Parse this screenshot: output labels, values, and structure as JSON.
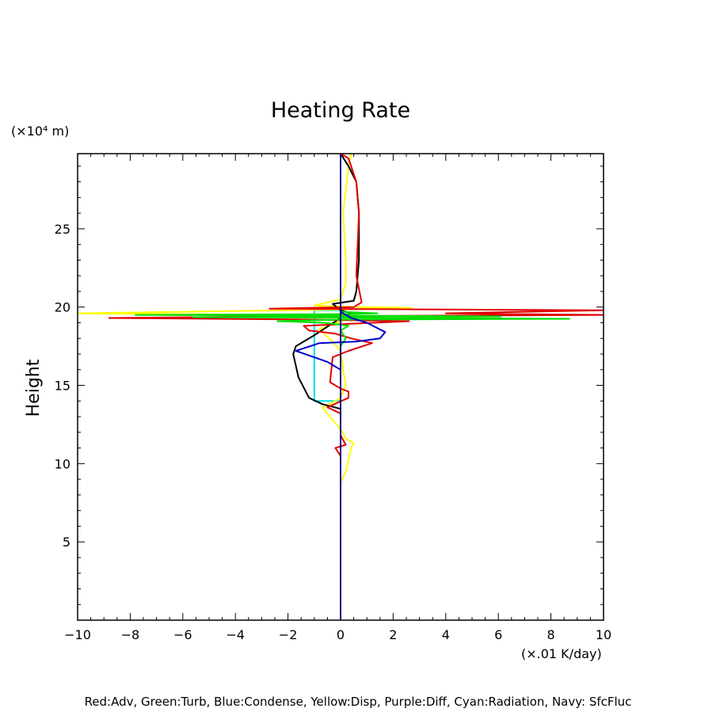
{
  "chart_data": {
    "type": "line",
    "title": "Heating Rate",
    "ylabel": "Height",
    "y_unit": "(×10⁴ m)",
    "x_unit": "(×.01 K/day)",
    "footer": "Red:Adv, Green:Turb, Blue:Condense, Yellow:Disp, Purple:Diff, Cyan:Radiation, Navy: SfcFluc",
    "xlim": [
      -10,
      10
    ],
    "ylim": [
      0,
      29.8
    ],
    "x_ticks": [
      -10,
      -8,
      -6,
      -4,
      -2,
      0,
      2,
      4,
      6,
      8,
      10
    ],
    "y_ticks": [
      5,
      10,
      15,
      20,
      25
    ],
    "grid": false,
    "colors": {
      "red": "#e00000",
      "green": "#00dd00",
      "blue": "#0000cc",
      "yellow": "#ffff00",
      "cyan": "#00e5e5",
      "navy": "#000080",
      "black": "#000000"
    },
    "series": [
      {
        "color_key": "cyan",
        "points": [
          [
            0,
            0
          ],
          [
            0,
            14
          ],
          [
            -1,
            14
          ],
          [
            -1,
            19.8
          ],
          [
            0,
            19.8
          ],
          [
            0,
            29.8
          ]
        ]
      },
      {
        "color_key": "yellow",
        "points": [
          [
            0,
            8.8
          ],
          [
            0.2,
            9.5
          ],
          [
            0.4,
            11
          ],
          [
            0.5,
            11.3
          ],
          [
            0.2,
            11.6
          ],
          [
            0,
            12.2
          ],
          [
            -0.4,
            13
          ],
          [
            -0.7,
            13.6
          ],
          [
            -0.4,
            13.8
          ],
          [
            0,
            14.2
          ],
          [
            0.2,
            15
          ],
          [
            0.1,
            16
          ],
          [
            0,
            17.2
          ],
          [
            -0.2,
            17.6
          ],
          [
            -0.8,
            18.6
          ],
          [
            0,
            19.1
          ],
          [
            0.4,
            19.3
          ],
          [
            -2.2,
            19.5
          ],
          [
            -10,
            19.6
          ],
          [
            -6,
            19.7
          ],
          [
            -2,
            19.8
          ],
          [
            0,
            19.85
          ],
          [
            2.7,
            19.95
          ],
          [
            0.7,
            20
          ],
          [
            -1,
            20.1
          ],
          [
            0,
            20.5
          ],
          [
            0.2,
            21.5
          ],
          [
            0.2,
            23
          ],
          [
            0.1,
            26
          ],
          [
            0.3,
            29
          ],
          [
            0.4,
            29.8
          ]
        ]
      },
      {
        "color_key": "black",
        "points": [
          [
            0,
            8.8
          ],
          [
            0,
            12
          ],
          [
            0,
            13.5
          ],
          [
            -0.7,
            13.8
          ],
          [
            -1.2,
            14.2
          ],
          [
            -1.6,
            15.5
          ],
          [
            -1.8,
            17
          ],
          [
            -1.7,
            17.5
          ],
          [
            -1,
            18.2
          ],
          [
            0,
            19.3
          ],
          [
            0.4,
            19.6
          ],
          [
            0,
            19.8
          ],
          [
            -0.3,
            20.2
          ],
          [
            0.5,
            20.4
          ],
          [
            0.6,
            21
          ],
          [
            0.7,
            23
          ],
          [
            0.7,
            26
          ],
          [
            0.6,
            28
          ],
          [
            0.3,
            29
          ],
          [
            0,
            29.8
          ]
        ]
      },
      {
        "color_key": "red",
        "points": [
          [
            0,
            0
          ],
          [
            0,
            10.5
          ],
          [
            -0.2,
            11
          ],
          [
            0.2,
            11.2
          ],
          [
            0,
            11.8
          ],
          [
            0,
            13.2
          ],
          [
            -0.5,
            13.6
          ],
          [
            0.3,
            14.2
          ],
          [
            0.3,
            14.6
          ],
          [
            0,
            14.8
          ],
          [
            -0.4,
            15.2
          ],
          [
            -0.3,
            16.8
          ],
          [
            0.3,
            17.2
          ],
          [
            1.2,
            17.7
          ],
          [
            0.4,
            18
          ],
          [
            -0.2,
            18.3
          ],
          [
            -1.2,
            18.5
          ],
          [
            -1.4,
            18.8
          ],
          [
            2.6,
            19.1
          ],
          [
            -1.2,
            19.2
          ],
          [
            -8.8,
            19.3
          ],
          [
            -3,
            19.4
          ],
          [
            10,
            19.5
          ],
          [
            4,
            19.6
          ],
          [
            10,
            19.8
          ],
          [
            -2.7,
            19.9
          ],
          [
            0.5,
            20
          ],
          [
            0.8,
            20.3
          ],
          [
            0.6,
            22
          ],
          [
            0.7,
            26
          ],
          [
            0.6,
            28
          ],
          [
            0.3,
            29.5
          ],
          [
            0,
            29.8
          ]
        ]
      },
      {
        "color_key": "green",
        "points": [
          [
            0,
            0
          ],
          [
            0,
            17.5
          ],
          [
            0.2,
            18
          ],
          [
            0,
            18.5
          ],
          [
            0.3,
            18.8
          ],
          [
            -0.6,
            19
          ],
          [
            -2.4,
            19.1
          ],
          [
            0,
            19.2
          ],
          [
            8.7,
            19.25
          ],
          [
            2,
            19.3
          ],
          [
            -5.6,
            19.35
          ],
          [
            6.1,
            19.4
          ],
          [
            0.5,
            19.45
          ],
          [
            -7.8,
            19.5
          ],
          [
            0,
            19.55
          ],
          [
            1.4,
            19.6
          ],
          [
            0,
            19.7
          ],
          [
            0,
            29.8
          ]
        ]
      },
      {
        "color_key": "blue",
        "points": [
          [
            0,
            0
          ],
          [
            0,
            16
          ],
          [
            -0.5,
            16.5
          ],
          [
            -1.7,
            17.2
          ],
          [
            -0.8,
            17.7
          ],
          [
            0.6,
            17.8
          ],
          [
            1.5,
            18
          ],
          [
            1.7,
            18.4
          ],
          [
            1,
            19
          ],
          [
            0.4,
            19.3
          ],
          [
            0,
            19.7
          ],
          [
            0,
            29.8
          ]
        ]
      },
      {
        "color_key": "navy",
        "points": [
          [
            0,
            0
          ],
          [
            0,
            29.8
          ]
        ]
      }
    ]
  }
}
